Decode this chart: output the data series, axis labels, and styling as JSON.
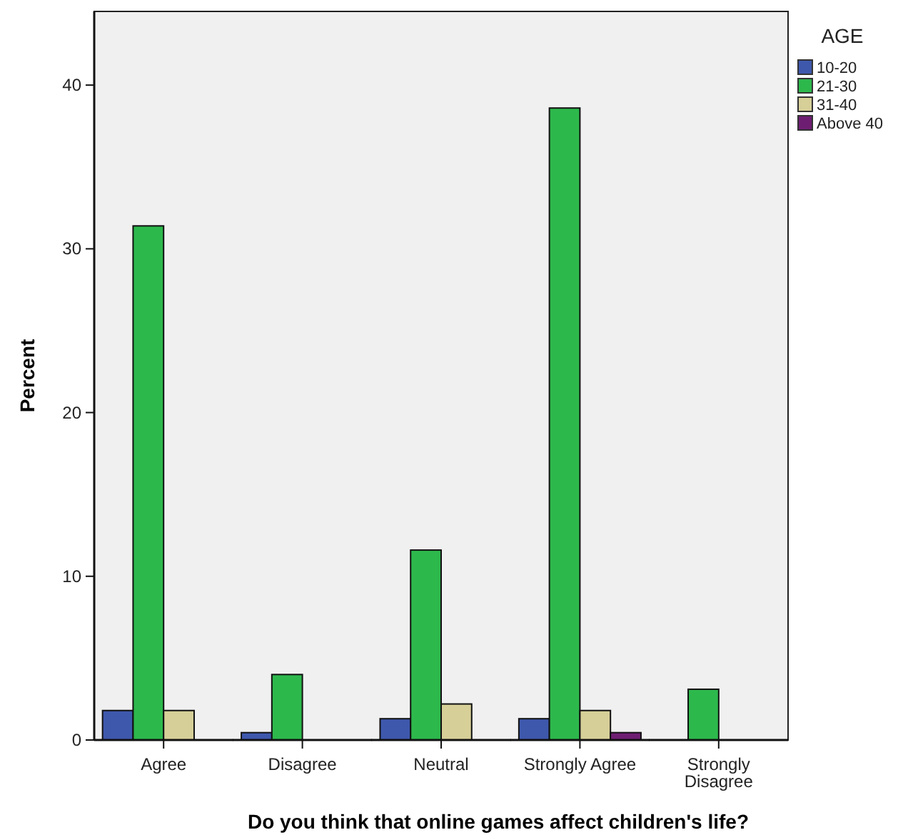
{
  "chart_data": {
    "type": "bar",
    "xlabel": "Do you think that online games affect children's life?",
    "ylabel": "Percent",
    "legend_title": "AGE",
    "categories": [
      "Agree",
      "Disagree",
      "Neutral",
      "Strongly Agree",
      "Strongly Disagree"
    ],
    "series": [
      {
        "name": "10-20",
        "color": "#3e58ac",
        "values": [
          1.8,
          0.45,
          1.3,
          1.3,
          0
        ]
      },
      {
        "name": "21-30",
        "color": "#2db84c",
        "values": [
          31.4,
          4.0,
          11.6,
          38.6,
          3.1
        ]
      },
      {
        "name": "31-40",
        "color": "#d6cf98",
        "values": [
          1.8,
          0,
          2.2,
          1.8,
          0
        ]
      },
      {
        "name": "Above 40",
        "color": "#6e1e72",
        "values": [
          0,
          0,
          0,
          0.45,
          0
        ]
      }
    ],
    "ylim": [
      0,
      44.5
    ],
    "yticks": [
      0,
      10,
      20,
      30,
      40
    ],
    "grid": false,
    "legend": "right"
  }
}
